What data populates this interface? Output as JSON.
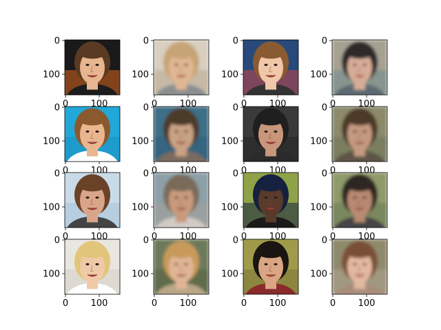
{
  "figure": {
    "rows": 4,
    "cols": 4,
    "panels": [
      {
        "kind": "real",
        "bg": "#1a1a1a",
        "accent": "#d9661e",
        "skin": "#e7b58f",
        "hair": "#5a3a22",
        "clothes": "#1c1c1c",
        "xticks": [
          "0",
          "100"
        ],
        "yticks": [
          "0",
          "100"
        ]
      },
      {
        "kind": "recon",
        "bg": "#d8cfc0",
        "accent": "#b8a890",
        "skin": "#e0b793",
        "hair": "#c7a474",
        "clothes": "#8b8f92",
        "xticks": [
          "0",
          "100"
        ],
        "yticks": [
          "0",
          "100"
        ]
      },
      {
        "kind": "real",
        "bg": "#274a7a",
        "accent": "#c74343",
        "skin": "#f0c7a8",
        "hair": "#8a5a32",
        "clothes": "#333333",
        "xticks": [
          "0",
          "100"
        ],
        "yticks": [
          "0",
          "100"
        ]
      },
      {
        "kind": "recon",
        "bg": "#a7a192",
        "accent": "#6e8b8c",
        "skin": "#d7ad98",
        "hair": "#2e2a2a",
        "clothes": "#5b6b72",
        "xticks": [
          "0",
          "100"
        ],
        "yticks": [
          "0",
          "100"
        ]
      },
      {
        "kind": "real",
        "bg": "#22a8d8",
        "accent": "#1a8fc2",
        "skin": "#eab690",
        "hair": "#8a5a2e",
        "clothes": "#ffffff",
        "xticks": [
          "0",
          "100"
        ],
        "yticks": [
          "0",
          "100"
        ]
      },
      {
        "kind": "recon",
        "bg": "#3d6f86",
        "accent": "#2d5c7a",
        "skin": "#c9a184",
        "hair": "#4e3a2c",
        "clothes": "#7a6a5e",
        "xticks": [
          "0",
          "100"
        ],
        "yticks": [
          "0",
          "100"
        ]
      },
      {
        "kind": "real",
        "bg": "#3a3a3a",
        "accent": "#222222",
        "skin": "#c8967a",
        "hair": "#1f1f1f",
        "clothes": "#2a2a2a",
        "xticks": [
          "0",
          "100"
        ],
        "yticks": [
          "0",
          "100"
        ]
      },
      {
        "kind": "recon",
        "bg": "#8c8a6a",
        "accent": "#6f7458",
        "skin": "#c49a80",
        "hair": "#4e3a2a",
        "clothes": "#5d5546",
        "xticks": [
          "0",
          "100"
        ],
        "yticks": [
          "0",
          "100"
        ]
      },
      {
        "kind": "real",
        "bg": "#c9dbe9",
        "accent": "#a8c2d8",
        "skin": "#d9a58a",
        "hair": "#6a4228",
        "clothes": "#444444",
        "xticks": [
          "0",
          "100"
        ],
        "yticks": [
          "0",
          "100"
        ]
      },
      {
        "kind": "recon",
        "bg": "#8da0a8",
        "accent": "#a6a097",
        "skin": "#c99a7d",
        "hair": "#7a6a5a",
        "clothes": "#d0cbc4",
        "xticks": [
          "0",
          "100"
        ],
        "yticks": [
          "0",
          "100"
        ]
      },
      {
        "kind": "real",
        "bg": "#8fa248",
        "accent": "#15213f",
        "skin": "#5a3a2a",
        "hair": "#15213f",
        "clothes": "#1a1a1a",
        "xticks": [
          "0",
          "100"
        ],
        "yticks": [
          "0",
          "100"
        ]
      },
      {
        "kind": "recon",
        "bg": "#8f9a6a",
        "accent": "#6a7a5a",
        "skin": "#b88a72",
        "hair": "#2e2622",
        "clothes": "#444444",
        "xticks": [
          "0",
          "100"
        ],
        "yticks": [
          "0",
          "100"
        ]
      },
      {
        "kind": "real",
        "bg": "#e9e6e0",
        "accent": "#d5cfc4",
        "skin": "#f0c9a8",
        "hair": "#e1c57a",
        "clothes": "#ffffff",
        "xticks": [
          "0",
          "100"
        ],
        "yticks": [
          "0",
          "100"
        ]
      },
      {
        "kind": "recon",
        "bg": "#6d7a5a",
        "accent": "#56603f",
        "skin": "#e0b595",
        "hair": "#c89a5a",
        "clothes": "#b8a686",
        "xticks": [
          "0",
          "100"
        ],
        "yticks": [
          "0",
          "100"
        ]
      },
      {
        "kind": "real",
        "bg": "#a09a4a",
        "accent": "#7c7638",
        "skin": "#d9a583",
        "hair": "#1a1412",
        "clothes": "#8a2a2a",
        "xticks": [
          "0",
          "100"
        ],
        "yticks": [
          "0",
          "100"
        ]
      },
      {
        "kind": "recon",
        "bg": "#8f8a6c",
        "accent": "#b0a690",
        "skin": "#e2b8a0",
        "hair": "#7a5038",
        "clothes": "#a88e7a",
        "xticks": [
          "0",
          "100"
        ],
        "yticks": [
          "0",
          "100"
        ]
      }
    ]
  }
}
